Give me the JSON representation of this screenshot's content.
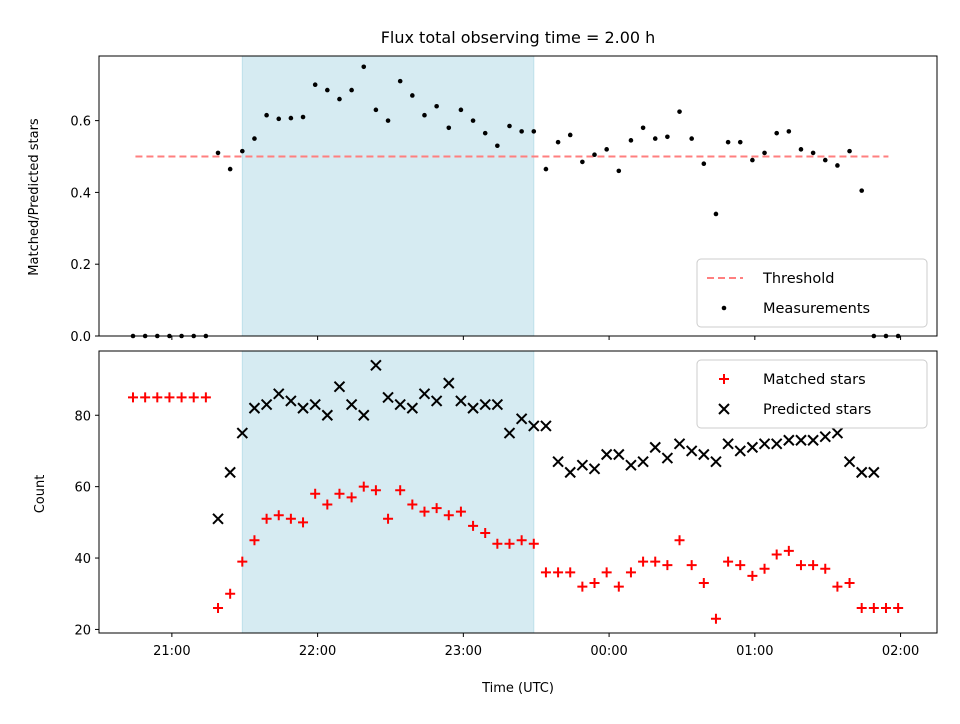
{
  "chart_data": [
    {
      "type": "scatter",
      "title": "Flux total observing time = 2.00 h",
      "xlabel": "",
      "ylabel": "Matched/Predicted stars",
      "ylim": [
        0,
        0.78
      ],
      "yticks": [
        "0.0",
        "0.2",
        "0.4",
        "0.6"
      ],
      "xticks": [
        "21:00",
        "22:00",
        "23:00",
        "00:00",
        "01:00",
        "02:00"
      ],
      "grid": false,
      "legend_position": "lower right",
      "shaded_span": {
        "x_start": "21:29",
        "x_end": "23:29",
        "color": "#add8e6"
      },
      "threshold": {
        "name": "Threshold",
        "value": 0.5,
        "x_start": "20:45",
        "x_end": "01:55",
        "color": "#ff7f7f"
      },
      "series": [
        {
          "name": "Measurements",
          "color": "#000000",
          "marker": "dot",
          "points": [
            [
              "20:44",
              0
            ],
            [
              "20:49",
              0
            ],
            [
              "20:54",
              0
            ],
            [
              "20:59",
              0
            ],
            [
              "21:04",
              0
            ],
            [
              "21:09",
              0
            ],
            [
              "21:14",
              0
            ],
            [
              "21:19",
              0.51
            ],
            [
              "21:24",
              0.465
            ],
            [
              "21:29",
              0.515
            ],
            [
              "21:34",
              0.55
            ],
            [
              "21:39",
              0.615
            ],
            [
              "21:44",
              0.605
            ],
            [
              "21:49",
              0.607
            ],
            [
              "21:54",
              0.61
            ],
            [
              "21:59",
              0.7
            ],
            [
              "22:04",
              0.685
            ],
            [
              "22:09",
              0.66
            ],
            [
              "22:14",
              0.685
            ],
            [
              "22:19",
              0.75
            ],
            [
              "22:24",
              0.63
            ],
            [
              "22:29",
              0.6
            ],
            [
              "22:34",
              0.71
            ],
            [
              "22:39",
              0.67
            ],
            [
              "22:44",
              0.615
            ],
            [
              "22:49",
              0.64
            ],
            [
              "22:54",
              0.58
            ],
            [
              "22:59",
              0.63
            ],
            [
              "23:04",
              0.6
            ],
            [
              "23:09",
              0.565
            ],
            [
              "23:14",
              0.53
            ],
            [
              "23:19",
              0.585
            ],
            [
              "23:24",
              0.57
            ],
            [
              "23:29",
              0.57
            ],
            [
              "23:34",
              0.465
            ],
            [
              "23:39",
              0.54
            ],
            [
              "23:44",
              0.56
            ],
            [
              "23:49",
              0.485
            ],
            [
              "23:54",
              0.505
            ],
            [
              "23:59",
              0.52
            ],
            [
              "00:04",
              0.46
            ],
            [
              "00:09",
              0.545
            ],
            [
              "00:14",
              0.58
            ],
            [
              "00:19",
              0.55
            ],
            [
              "00:24",
              0.555
            ],
            [
              "00:29",
              0.625
            ],
            [
              "00:34",
              0.55
            ],
            [
              "00:39",
              0.48
            ],
            [
              "00:44",
              0.34
            ],
            [
              "00:49",
              0.54
            ],
            [
              "00:54",
              0.54
            ],
            [
              "00:59",
              0.49
            ],
            [
              "01:04",
              0.51
            ],
            [
              "01:09",
              0.565
            ],
            [
              "01:14",
              0.57
            ],
            [
              "01:19",
              0.52
            ],
            [
              "01:24",
              0.51
            ],
            [
              "01:29",
              0.49
            ],
            [
              "01:34",
              0.475
            ],
            [
              "01:39",
              0.515
            ],
            [
              "01:44",
              0.405
            ],
            [
              "01:49",
              0
            ],
            [
              "01:54",
              0
            ],
            [
              "01:59",
              0
            ]
          ]
        }
      ]
    },
    {
      "type": "scatter",
      "title": "",
      "xlabel": "Time (UTC)",
      "ylabel": "Count",
      "ylim": [
        19,
        98
      ],
      "yticks": [
        "20",
        "40",
        "60",
        "80"
      ],
      "xticks": [
        "21:00",
        "22:00",
        "23:00",
        "00:00",
        "01:00",
        "02:00"
      ],
      "grid": false,
      "legend_position": "upper right",
      "shaded_span": {
        "x_start": "21:29",
        "x_end": "23:29",
        "color": "#add8e6"
      },
      "series": [
        {
          "name": "Matched stars",
          "color": "#ff0000",
          "marker": "plus",
          "points": [
            [
              "20:44",
              85
            ],
            [
              "20:49",
              85
            ],
            [
              "20:54",
              85
            ],
            [
              "20:59",
              85
            ],
            [
              "21:04",
              85
            ],
            [
              "21:09",
              85
            ],
            [
              "21:14",
              85
            ],
            [
              "21:19",
              26
            ],
            [
              "21:24",
              30
            ],
            [
              "21:29",
              39
            ],
            [
              "21:34",
              45
            ],
            [
              "21:39",
              51
            ],
            [
              "21:44",
              52
            ],
            [
              "21:49",
              51
            ],
            [
              "21:54",
              50
            ],
            [
              "21:59",
              58
            ],
            [
              "22:04",
              55
            ],
            [
              "22:09",
              58
            ],
            [
              "22:14",
              57
            ],
            [
              "22:19",
              60
            ],
            [
              "22:24",
              59
            ],
            [
              "22:29",
              51
            ],
            [
              "22:34",
              59
            ],
            [
              "22:39",
              55
            ],
            [
              "22:44",
              53
            ],
            [
              "22:49",
              54
            ],
            [
              "22:54",
              52
            ],
            [
              "22:59",
              53
            ],
            [
              "23:04",
              49
            ],
            [
              "23:09",
              47
            ],
            [
              "23:14",
              44
            ],
            [
              "23:19",
              44
            ],
            [
              "23:24",
              45
            ],
            [
              "23:29",
              44
            ],
            [
              "23:34",
              36
            ],
            [
              "23:39",
              36
            ],
            [
              "23:44",
              36
            ],
            [
              "23:49",
              32
            ],
            [
              "23:54",
              33
            ],
            [
              "23:59",
              36
            ],
            [
              "00:04",
              32
            ],
            [
              "00:09",
              36
            ],
            [
              "00:14",
              39
            ],
            [
              "00:19",
              39
            ],
            [
              "00:24",
              38
            ],
            [
              "00:29",
              45
            ],
            [
              "00:34",
              38
            ],
            [
              "00:39",
              33
            ],
            [
              "00:44",
              23
            ],
            [
              "00:49",
              39
            ],
            [
              "00:54",
              38
            ],
            [
              "00:59",
              35
            ],
            [
              "01:04",
              37
            ],
            [
              "01:09",
              41
            ],
            [
              "01:14",
              42
            ],
            [
              "01:19",
              38
            ],
            [
              "01:24",
              38
            ],
            [
              "01:29",
              37
            ],
            [
              "01:34",
              32
            ],
            [
              "01:39",
              33
            ],
            [
              "01:44",
              26
            ],
            [
              "01:49",
              26
            ],
            [
              "01:54",
              26
            ],
            [
              "01:59",
              26
            ]
          ]
        },
        {
          "name": "Predicted stars",
          "color": "#000000",
          "marker": "x",
          "points": [
            [
              "21:19",
              51
            ],
            [
              "21:24",
              64
            ],
            [
              "21:29",
              75
            ],
            [
              "21:34",
              82
            ],
            [
              "21:39",
              83
            ],
            [
              "21:44",
              86
            ],
            [
              "21:49",
              84
            ],
            [
              "21:54",
              82
            ],
            [
              "21:59",
              83
            ],
            [
              "22:04",
              80
            ],
            [
              "22:09",
              88
            ],
            [
              "22:14",
              83
            ],
            [
              "22:19",
              80
            ],
            [
              "22:24",
              94
            ],
            [
              "22:29",
              85
            ],
            [
              "22:34",
              83
            ],
            [
              "22:39",
              82
            ],
            [
              "22:44",
              86
            ],
            [
              "22:49",
              84
            ],
            [
              "22:54",
              89
            ],
            [
              "22:59",
              84
            ],
            [
              "23:04",
              82
            ],
            [
              "23:09",
              83
            ],
            [
              "23:14",
              83
            ],
            [
              "23:19",
              75
            ],
            [
              "23:24",
              79
            ],
            [
              "23:29",
              77
            ],
            [
              "23:34",
              77
            ],
            [
              "23:39",
              67
            ],
            [
              "23:44",
              64
            ],
            [
              "23:49",
              66
            ],
            [
              "23:54",
              65
            ],
            [
              "23:59",
              69
            ],
            [
              "00:04",
              69
            ],
            [
              "00:09",
              66
            ],
            [
              "00:14",
              67
            ],
            [
              "00:19",
              71
            ],
            [
              "00:24",
              68
            ],
            [
              "00:29",
              72
            ],
            [
              "00:34",
              70
            ],
            [
              "00:39",
              69
            ],
            [
              "00:44",
              67
            ],
            [
              "00:49",
              72
            ],
            [
              "00:54",
              70
            ],
            [
              "00:59",
              71
            ],
            [
              "01:04",
              72
            ],
            [
              "01:09",
              72
            ],
            [
              "01:14",
              73
            ],
            [
              "01:19",
              73
            ],
            [
              "01:24",
              73
            ],
            [
              "01:29",
              74
            ],
            [
              "01:34",
              75
            ],
            [
              "01:39",
              67
            ],
            [
              "01:44",
              64
            ],
            [
              "01:49",
              64
            ]
          ]
        }
      ]
    }
  ]
}
